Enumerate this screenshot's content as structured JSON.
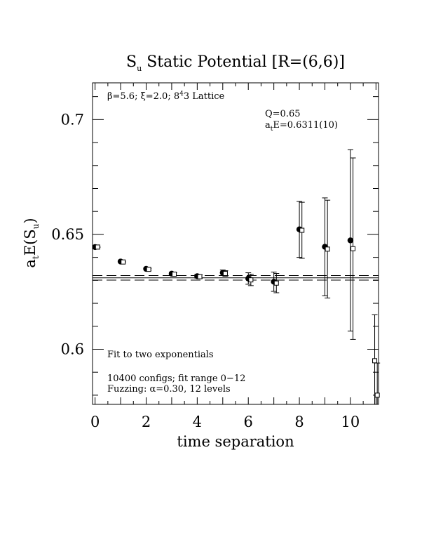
{
  "chart_data": {
    "type": "scatter",
    "title_main": "S",
    "title_sub": "u",
    "title_rest": " Static Potential [R=(6,6)]",
    "xlabel": "time separation",
    "ylabel_a": "a",
    "ylabel_t": "t",
    "ylabel_E": "E(S",
    "ylabel_u": "u",
    "ylabel_close": ")",
    "xlim": [
      -0.1,
      11.1
    ],
    "ylim": [
      0.576,
      0.716
    ],
    "xticks": [
      0,
      2,
      4,
      6,
      8,
      10
    ],
    "xtick_labels": [
      "0",
      "2",
      "4",
      "6",
      "8",
      "10"
    ],
    "yticks": [
      0.6,
      0.65,
      0.7
    ],
    "ytick_labels": [
      "0.6",
      "0.65",
      "0.7"
    ],
    "grid": false,
    "annotations": {
      "params": "β=5.6; ξ=2.0; 8",
      "params_sup": "4",
      "params_end": "3 Lattice",
      "q_value": "Q=0.65",
      "fit_E_a": "a",
      "fit_E_t": "t",
      "fit_E_rest": "E=0.6311(10)",
      "fit_type": "Fit to two exponentials",
      "configs": "10400 configs; fit range 0−12",
      "fuzzing": "Fuzzing: α=0.30, 12 levels"
    },
    "fit": {
      "value": 0.6311,
      "error": 0.001
    },
    "series": [
      {
        "marker": "filled-circle",
        "x": [
          0,
          1,
          2,
          3,
          4,
          5,
          6,
          7,
          8,
          9,
          10
        ],
        "y": [
          0.6445,
          0.6382,
          0.635,
          0.6329,
          0.6318,
          0.6333,
          0.6308,
          0.6294,
          0.6522,
          0.6446,
          0.6474
        ],
        "err": [
          0.0002,
          0.0003,
          0.0004,
          0.0006,
          0.0008,
          0.0012,
          0.0025,
          0.0042,
          0.0122,
          0.0213,
          0.0395
        ]
      },
      {
        "marker": "open-square",
        "x": [
          0.1,
          1.1,
          2.1,
          3.1,
          4.1,
          5.1,
          6.1,
          7.1,
          8.1,
          9.1,
          10.1,
          10.95,
          11.05
        ],
        "y": [
          0.6445,
          0.638,
          0.6348,
          0.6327,
          0.6316,
          0.633,
          0.6302,
          0.6288,
          0.6518,
          0.6436,
          0.6438,
          0.595,
          0.58
        ],
        "err": [
          0.0002,
          0.0003,
          0.0004,
          0.0006,
          0.0008,
          0.0012,
          0.0025,
          0.0042,
          0.0122,
          0.0213,
          0.0395,
          0.02,
          0.014
        ]
      }
    ]
  }
}
